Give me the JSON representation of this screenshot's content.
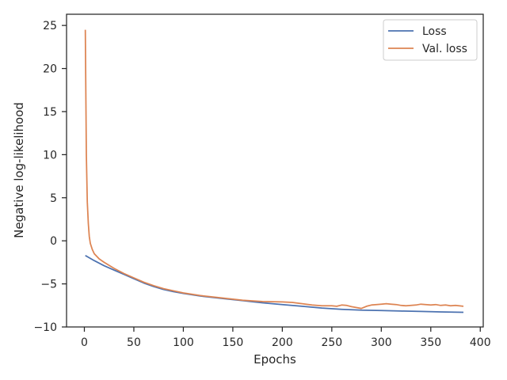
{
  "chart_data": {
    "type": "line",
    "xlabel": "Epochs",
    "ylabel": "Negative log-likelihood",
    "xlim": [
      -18,
      403
    ],
    "ylim": [
      -10,
      26.3
    ],
    "xticks": [
      0,
      50,
      100,
      150,
      200,
      250,
      300,
      350,
      400
    ],
    "yticks": [
      -10,
      -5,
      0,
      5,
      10,
      15,
      20,
      25
    ],
    "grid": false,
    "legend_position": "top-right",
    "series": [
      {
        "name": "Loss",
        "color": "#4c72b0",
        "x": [
          1,
          10,
          20,
          30,
          40,
          50,
          60,
          70,
          80,
          90,
          100,
          120,
          140,
          160,
          180,
          200,
          220,
          240,
          260,
          280,
          300,
          320,
          340,
          360,
          383
        ],
        "y": [
          -1.7,
          -2.3,
          -2.9,
          -3.4,
          -3.9,
          -4.4,
          -4.9,
          -5.3,
          -5.65,
          -5.9,
          -6.1,
          -6.45,
          -6.7,
          -6.95,
          -7.2,
          -7.4,
          -7.6,
          -7.8,
          -7.95,
          -8.05,
          -8.1,
          -8.15,
          -8.2,
          -8.25,
          -8.3
        ]
      },
      {
        "name": "Val. loss",
        "color": "#dd8452",
        "x": [
          1,
          2,
          3,
          4,
          5,
          6,
          8,
          10,
          15,
          20,
          30,
          40,
          50,
          60,
          70,
          80,
          90,
          100,
          120,
          140,
          160,
          180,
          200,
          210,
          220,
          230,
          240,
          250,
          255,
          260,
          265,
          270,
          275,
          280,
          285,
          290,
          295,
          300,
          305,
          310,
          315,
          320,
          325,
          330,
          335,
          340,
          345,
          350,
          355,
          360,
          365,
          370,
          375,
          383
        ],
        "y": [
          24.5,
          10,
          4.5,
          2,
          0.5,
          -0.3,
          -1,
          -1.5,
          -2.1,
          -2.5,
          -3.2,
          -3.8,
          -4.3,
          -4.8,
          -5.2,
          -5.55,
          -5.8,
          -6.05,
          -6.4,
          -6.65,
          -6.9,
          -7.05,
          -7.1,
          -7.15,
          -7.3,
          -7.45,
          -7.55,
          -7.55,
          -7.6,
          -7.45,
          -7.5,
          -7.65,
          -7.75,
          -7.85,
          -7.6,
          -7.45,
          -7.4,
          -7.35,
          -7.3,
          -7.35,
          -7.4,
          -7.5,
          -7.55,
          -7.5,
          -7.45,
          -7.35,
          -7.4,
          -7.45,
          -7.4,
          -7.5,
          -7.45,
          -7.55,
          -7.5,
          -7.6
        ]
      }
    ]
  }
}
